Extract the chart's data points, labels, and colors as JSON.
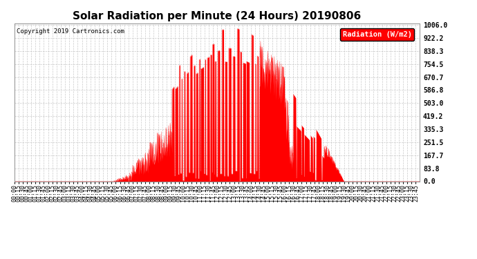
{
  "title": "Solar Radiation per Minute (24 Hours) 20190806",
  "copyright_text": "Copyright 2019 Cartronics.com",
  "legend_label": "Radiation (W/m2)",
  "y_ticks": [
    0.0,
    83.8,
    167.7,
    251.5,
    335.3,
    419.2,
    503.0,
    586.8,
    670.7,
    754.5,
    838.3,
    922.2,
    1006.0
  ],
  "y_max": 1006.0,
  "y_min": 0.0,
  "fill_color": "#FF0000",
  "line_color": "#FF0000",
  "background_color": "#FFFFFF",
  "grid_color": "#BBBBBB",
  "title_fontsize": 11,
  "tick_fontsize": 6,
  "legend_bg_color": "#FF0000",
  "legend_text_color": "#FFFFFF",
  "sunrise_min": 350,
  "sunset_min": 1170,
  "solar_noon_min": 760,
  "figwidth": 6.9,
  "figheight": 3.75,
  "dpi": 100
}
